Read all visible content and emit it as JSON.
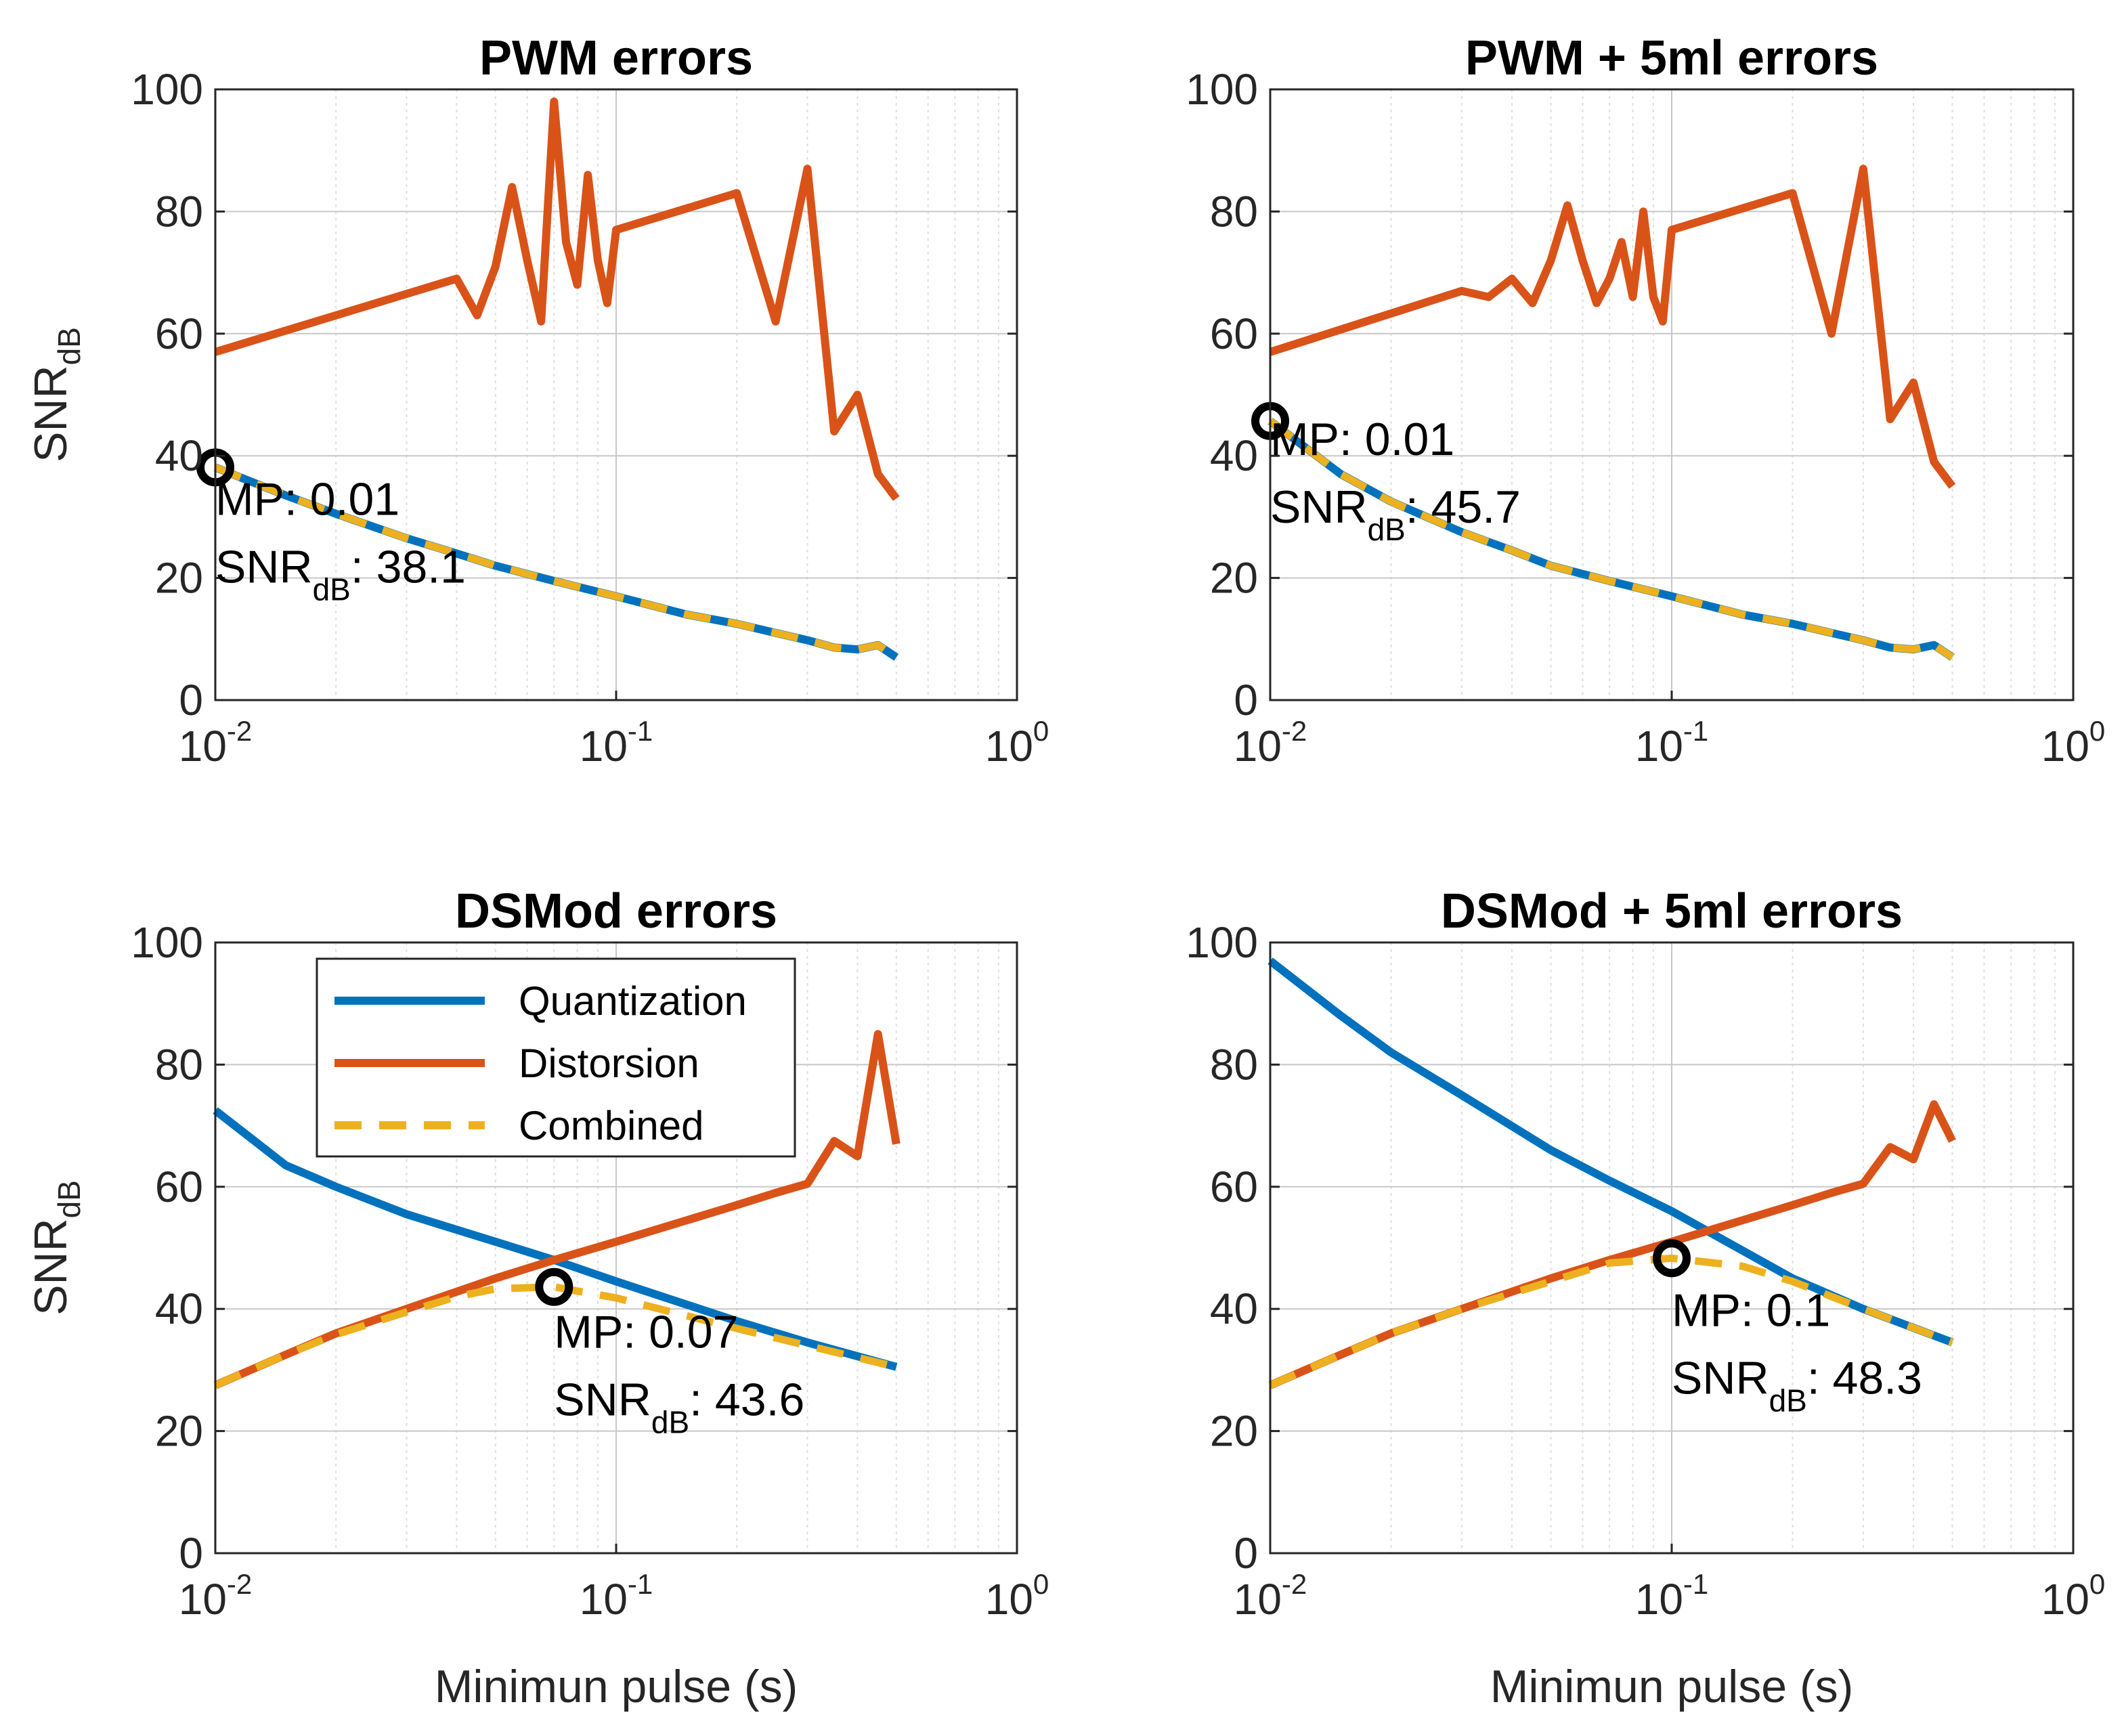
{
  "colors": {
    "quantization": "#0072BD",
    "distorsion": "#D95319",
    "combined": "#EDB120",
    "marker": "#000000"
  },
  "chart_data": [
    {
      "type": "line",
      "title": "PWM errors",
      "xlabel": "",
      "ylabel": "SNR",
      "ylabel_sub": "dB",
      "xscale": "log",
      "xlim": [
        0.01,
        1
      ],
      "ylim": [
        0,
        100
      ],
      "yticks": [
        "0",
        "20",
        "40",
        "60",
        "80",
        "100"
      ],
      "xticks": [
        {
          "base": "10",
          "exp": "-2"
        },
        {
          "base": "10",
          "exp": "-1"
        },
        {
          "base": "10",
          "exp": "0"
        }
      ],
      "grid": true,
      "series": [
        {
          "name": "Quantization",
          "key": "quantization",
          "x": [
            0.01,
            0.015,
            0.02,
            0.03,
            0.04,
            0.05,
            0.07,
            0.1,
            0.15,
            0.2,
            0.25,
            0.3,
            0.35,
            0.4,
            0.45,
            0.5
          ],
          "y": [
            38.1,
            33.5,
            30.5,
            26.5,
            24.0,
            22.0,
            19.5,
            17.0,
            14.0,
            12.5,
            11.0,
            9.8,
            8.6,
            8.3,
            9.0,
            7.0
          ]
        },
        {
          "name": "Distorsion",
          "key": "distorsion",
          "x": [
            0.01,
            0.04,
            0.045,
            0.05,
            0.055,
            0.06,
            0.065,
            0.07,
            0.075,
            0.08,
            0.085,
            0.09,
            0.095,
            0.1,
            0.2,
            0.25,
            0.3,
            0.35,
            0.4,
            0.45,
            0.5
          ],
          "y": [
            57,
            69,
            63,
            71,
            84,
            72,
            62,
            98,
            75,
            68,
            86,
            72,
            65,
            77,
            83,
            62,
            87,
            44,
            50,
            37,
            33
          ]
        },
        {
          "name": "Combined",
          "key": "combined",
          "x": [
            0.01,
            0.015,
            0.02,
            0.03,
            0.04,
            0.05,
            0.07,
            0.1,
            0.15,
            0.2,
            0.25,
            0.3,
            0.35,
            0.4,
            0.45,
            0.5
          ],
          "y": [
            38.1,
            33.5,
            30.5,
            26.5,
            24.0,
            22.0,
            19.5,
            17.0,
            14.0,
            12.5,
            11.0,
            9.8,
            8.6,
            8.3,
            9.0,
            7.0
          ]
        }
      ],
      "marker": {
        "x": 0.01,
        "y": 38.1
      },
      "annotation": {
        "line1": "MP: 0.01",
        "prefix": "SNR",
        "sub": "dB",
        "suffix": ": 38.1"
      }
    },
    {
      "type": "line",
      "title": "PWM + 5ml errors",
      "xlabel": "",
      "ylabel": "",
      "ylabel_sub": "",
      "xscale": "log",
      "xlim": [
        0.01,
        1
      ],
      "ylim": [
        0,
        100
      ],
      "yticks": [
        "0",
        "20",
        "40",
        "60",
        "80",
        "100"
      ],
      "xticks": [
        {
          "base": "10",
          "exp": "-2"
        },
        {
          "base": "10",
          "exp": "-1"
        },
        {
          "base": "10",
          "exp": "0"
        }
      ],
      "grid": true,
      "series": [
        {
          "name": "Quantization",
          "key": "quantization",
          "x": [
            0.01,
            0.015,
            0.02,
            0.03,
            0.04,
            0.05,
            0.07,
            0.1,
            0.15,
            0.2,
            0.25,
            0.3,
            0.35,
            0.4,
            0.45,
            0.5
          ],
          "y": [
            45.7,
            37.0,
            32.5,
            27.5,
            24.5,
            22.0,
            19.5,
            17.0,
            14.0,
            12.5,
            11.0,
            9.8,
            8.6,
            8.3,
            9.0,
            7.0
          ]
        },
        {
          "name": "Distorsion",
          "key": "distorsion",
          "x": [
            0.01,
            0.03,
            0.035,
            0.04,
            0.045,
            0.05,
            0.055,
            0.06,
            0.065,
            0.07,
            0.075,
            0.08,
            0.085,
            0.09,
            0.095,
            0.1,
            0.2,
            0.25,
            0.3,
            0.35,
            0.4,
            0.45,
            0.5
          ],
          "y": [
            57,
            67,
            66,
            69,
            65,
            72,
            81,
            72,
            65,
            69,
            75,
            66,
            80,
            66,
            62,
            77,
            83,
            60,
            87,
            46,
            52,
            39,
            35
          ]
        },
        {
          "name": "Combined",
          "key": "combined",
          "x": [
            0.01,
            0.015,
            0.02,
            0.03,
            0.04,
            0.05,
            0.07,
            0.1,
            0.15,
            0.2,
            0.25,
            0.3,
            0.35,
            0.4,
            0.45,
            0.5
          ],
          "y": [
            45.7,
            37.0,
            32.5,
            27.5,
            24.5,
            22.0,
            19.5,
            17.0,
            14.0,
            12.5,
            11.0,
            9.8,
            8.6,
            8.3,
            9.0,
            7.0
          ]
        }
      ],
      "marker": {
        "x": 0.01,
        "y": 45.7
      },
      "annotation": {
        "line1": "MP: 0.01",
        "prefix": "SNR",
        "sub": "dB",
        "suffix": ": 45.7"
      }
    },
    {
      "type": "line",
      "title": "DSMod errors",
      "xlabel": "Minimun pulse (s)",
      "ylabel": "SNR",
      "ylabel_sub": "dB",
      "xscale": "log",
      "xlim": [
        0.01,
        1
      ],
      "ylim": [
        0,
        100
      ],
      "yticks": [
        "0",
        "20",
        "40",
        "60",
        "80",
        "100"
      ],
      "xticks": [
        {
          "base": "10",
          "exp": "-2"
        },
        {
          "base": "10",
          "exp": "-1"
        },
        {
          "base": "10",
          "exp": "0"
        }
      ],
      "grid": true,
      "legend": {
        "placement": "top-left",
        "entries": [
          "Quantization",
          "Distorsion",
          "Combined"
        ]
      },
      "series": [
        {
          "name": "Quantization",
          "key": "quantization",
          "x": [
            0.01,
            0.015,
            0.02,
            0.03,
            0.05,
            0.07,
            0.1,
            0.2,
            0.3,
            0.5
          ],
          "y": [
            72.5,
            63.5,
            60,
            55.5,
            51,
            48,
            44.5,
            38,
            34.5,
            30.5
          ]
        },
        {
          "name": "Distorsion",
          "key": "distorsion",
          "x": [
            0.01,
            0.015,
            0.02,
            0.03,
            0.05,
            0.07,
            0.1,
            0.2,
            0.25,
            0.3,
            0.35,
            0.4,
            0.45,
            0.5
          ],
          "y": [
            27.5,
            32.5,
            36,
            40,
            45,
            48,
            51,
            57,
            59,
            60.5,
            67.5,
            65,
            85,
            67
          ]
        },
        {
          "name": "Combined",
          "key": "combined",
          "x": [
            0.01,
            0.015,
            0.02,
            0.03,
            0.04,
            0.05,
            0.07,
            0.1,
            0.2,
            0.3,
            0.5
          ],
          "y": [
            27.5,
            32.5,
            35.8,
            39.5,
            42,
            43.3,
            43.6,
            41.8,
            36.8,
            34,
            30.5
          ]
        }
      ],
      "marker": {
        "x": 0.07,
        "y": 43.6
      },
      "annotation": {
        "line1": "MP: 0.07",
        "prefix": "SNR",
        "sub": "dB",
        "suffix": ": 43.6"
      }
    },
    {
      "type": "line",
      "title": "DSMod + 5ml errors",
      "xlabel": "Minimun pulse (s)",
      "ylabel": "",
      "ylabel_sub": "",
      "xscale": "log",
      "xlim": [
        0.01,
        1
      ],
      "ylim": [
        0,
        100
      ],
      "yticks": [
        "0",
        "20",
        "40",
        "60",
        "80",
        "100"
      ],
      "xticks": [
        {
          "base": "10",
          "exp": "-2"
        },
        {
          "base": "10",
          "exp": "-1"
        },
        {
          "base": "10",
          "exp": "0"
        }
      ],
      "grid": true,
      "series": [
        {
          "name": "Quantization",
          "key": "quantization",
          "x": [
            0.01,
            0.015,
            0.02,
            0.03,
            0.05,
            0.07,
            0.1,
            0.2,
            0.3,
            0.5
          ],
          "y": [
            97,
            88,
            82,
            75,
            66,
            61,
            56,
            45,
            40,
            34.5
          ]
        },
        {
          "name": "Distorsion",
          "key": "distorsion",
          "x": [
            0.01,
            0.015,
            0.02,
            0.03,
            0.05,
            0.07,
            0.1,
            0.2,
            0.25,
            0.3,
            0.35,
            0.4,
            0.45,
            0.5
          ],
          "y": [
            27.5,
            32.5,
            36,
            40,
            45,
            48,
            51,
            57,
            59,
            60.5,
            66.5,
            64.5,
            73.5,
            67.5
          ]
        },
        {
          "name": "Combined",
          "key": "combined",
          "x": [
            0.01,
            0.015,
            0.02,
            0.03,
            0.05,
            0.07,
            0.1,
            0.15,
            0.2,
            0.3,
            0.5
          ],
          "y": [
            27.5,
            32.5,
            36,
            40,
            44.5,
            47.5,
            48.3,
            47,
            44.5,
            40,
            34.5
          ]
        }
      ],
      "marker": {
        "x": 0.1,
        "y": 48.3
      },
      "annotation": {
        "line1": "MP: 0.1",
        "prefix": "SNR",
        "sub": "dB",
        "suffix": ": 48.3"
      }
    }
  ]
}
